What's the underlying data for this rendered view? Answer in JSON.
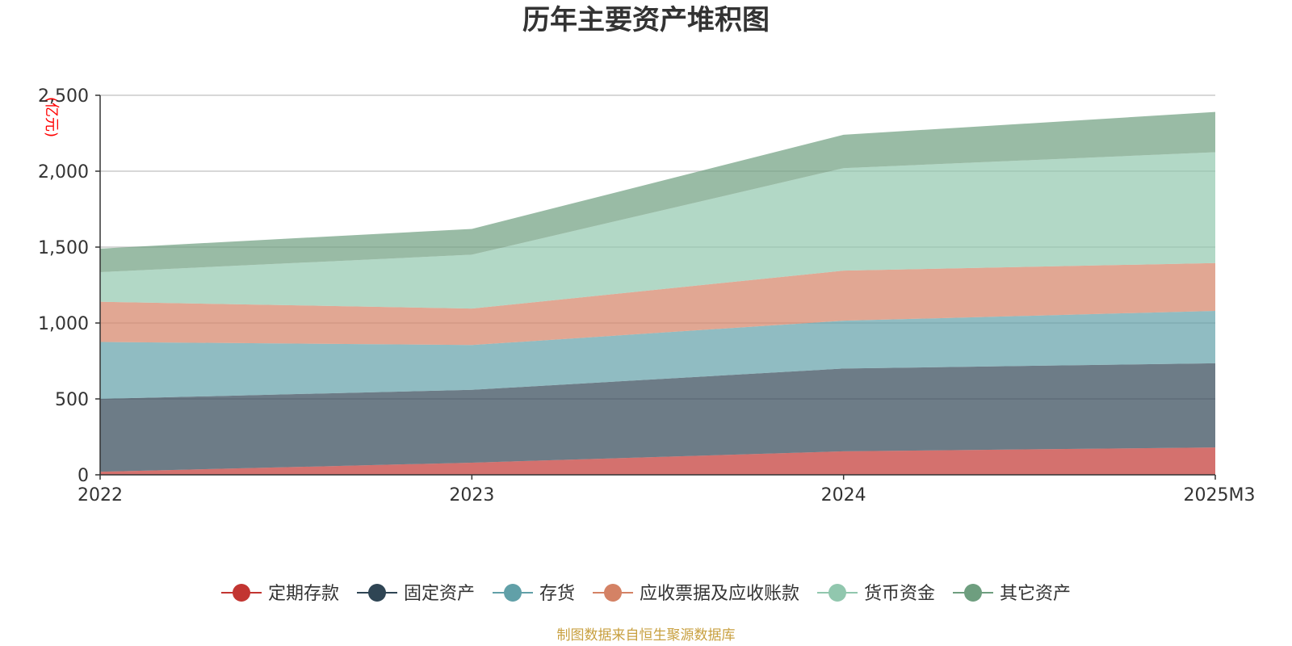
{
  "chart_data": {
    "type": "area",
    "stacked": true,
    "title": "历年主要资产堆积图",
    "unit": "(亿元)",
    "categories": [
      "2022",
      "2023",
      "2024",
      "2025M3"
    ],
    "ylim": [
      0,
      2500
    ],
    "yticks": [
      0,
      500,
      1000,
      1500,
      2000,
      2500
    ],
    "ytick_labels": [
      "0",
      "500",
      "1,000",
      "1,500",
      "2,000",
      "2,500"
    ],
    "grid": true,
    "legend_position": "bottom",
    "series": [
      {
        "name": "定期存款",
        "color": "#c23531",
        "values": [
          20,
          80,
          155,
          180
        ]
      },
      {
        "name": "固定资产",
        "color": "#2f4554",
        "values": [
          480,
          480,
          545,
          555
        ]
      },
      {
        "name": "存货",
        "color": "#61a0a8",
        "values": [
          375,
          295,
          315,
          345
        ]
      },
      {
        "name": "应收票据及应收账款",
        "color": "#d48265",
        "values": [
          265,
          240,
          330,
          315
        ]
      },
      {
        "name": "货币资金",
        "color": "#91c7ae",
        "values": [
          195,
          355,
          675,
          730
        ]
      },
      {
        "name": "其它资产",
        "color": "#6e9e7f",
        "values": [
          155,
          170,
          220,
          265
        ]
      }
    ],
    "source": "制图数据来自恒生聚源数据库"
  }
}
